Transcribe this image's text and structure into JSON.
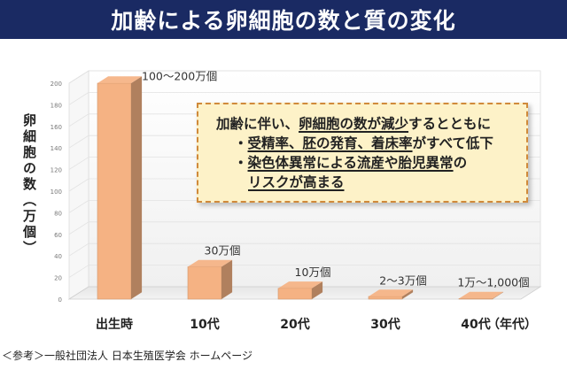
{
  "header": {
    "title": "加齢による卵細胞の数と質の変化"
  },
  "chart_data": {
    "type": "bar",
    "categories": [
      "出生時",
      "10代",
      "20代",
      "30代",
      "40代"
    ],
    "values": [
      200,
      30,
      10,
      2.5,
      0.5
    ],
    "data_labels": [
      "100〜200万個",
      "30万個",
      "10万個",
      "2〜3万個",
      "1万〜1,000個"
    ],
    "yticks": [
      0,
      20,
      40,
      60,
      80,
      100,
      120,
      140,
      160,
      180,
      200
    ],
    "ylim": [
      0,
      200
    ],
    "ylabel": "卵細胞の数（万個）",
    "xlabel": "（年代）",
    "bar_color": "#f5b283"
  },
  "note": {
    "line1_pre": "加齢に伴い、",
    "line1_u": "卵細胞の数が減少",
    "line1_post": "するとともに",
    "line2_bullet": "・",
    "line2_u": "受精率、胚の発育、着床率",
    "line2_post": "がすべて低下",
    "line3_bullet": "・",
    "line3_u": "染色体異常による流産や胎児異常",
    "line3_post": "の",
    "line4": "リスクが高まる"
  },
  "footer": {
    "source": "＜参考＞一般社団法人 日本生殖医学会 ホームページ"
  }
}
